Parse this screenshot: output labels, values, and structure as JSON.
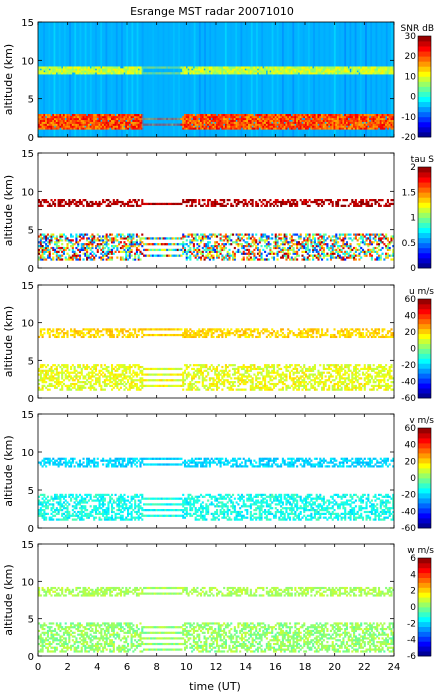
{
  "figure_title": "Esrange MST radar 20071010",
  "xlabel": "time (UT)",
  "x_ticks": [
    "0",
    "2",
    "4",
    "6",
    "8",
    "10",
    "12",
    "14",
    "16",
    "18",
    "20",
    "22",
    "24"
  ],
  "chart_data": [
    {
      "type": "heatmap",
      "quantity": "SNR",
      "colorbar_label": "SNR dB",
      "title": "Esrange MST radar 20071010",
      "xlabel": "",
      "ylabel": "altitude (km)",
      "xlim": [
        0,
        24
      ],
      "ylim": [
        0,
        15
      ],
      "y_ticks": [
        "0",
        "5",
        "10",
        "15"
      ],
      "clim": [
        -20,
        30
      ],
      "cbar_ticks": [
        "30",
        "20",
        "10",
        "0",
        "-10",
        "-20"
      ],
      "data_gap_hours": [
        7.0,
        9.6
      ],
      "layers": [
        {
          "altitude_km": [
            8.2,
            9.0
          ],
          "value_range": [
            5,
            12
          ]
        },
        {
          "altitude_km": [
            1.0,
            3.0
          ],
          "value_range": [
            15,
            25
          ]
        }
      ],
      "background_value": -5,
      "grid": false
    },
    {
      "type": "heatmap",
      "quantity": "tau",
      "colorbar_label": "tau S",
      "xlabel": "",
      "ylabel": "altitude (km)",
      "xlim": [
        0,
        24
      ],
      "ylim": [
        0,
        15
      ],
      "y_ticks": [
        "0",
        "5",
        "10",
        "15"
      ],
      "clim": [
        0,
        2
      ],
      "cbar_ticks": [
        "2",
        "1.5",
        "1",
        "0.5",
        "0"
      ],
      "data_gap_hours": [
        7.0,
        9.6
      ],
      "layers": [
        {
          "altitude_km": [
            8.0,
            9.0
          ],
          "value_range": [
            1.8,
            2.0
          ]
        },
        {
          "altitude_km": [
            1.0,
            4.5
          ],
          "value_range": [
            0.3,
            2.0
          ]
        }
      ],
      "grid": false
    },
    {
      "type": "heatmap",
      "quantity": "u",
      "colorbar_label": "u m/s",
      "xlabel": "",
      "ylabel": "altitude (km)",
      "xlim": [
        0,
        24
      ],
      "ylim": [
        0,
        15
      ],
      "y_ticks": [
        "0",
        "5",
        "10",
        "15"
      ],
      "clim": [
        -60,
        60
      ],
      "cbar_ticks": [
        "60",
        "40",
        "20",
        "0",
        "-20",
        "-40",
        "-60"
      ],
      "data_gap_hours": [
        7.0,
        9.6
      ],
      "layers": [
        {
          "altitude_km": [
            8.0,
            9.2
          ],
          "value_range": [
            15,
            25
          ]
        },
        {
          "altitude_km": [
            1.0,
            4.5
          ],
          "value_range": [
            5,
            20
          ]
        }
      ],
      "grid": false
    },
    {
      "type": "heatmap",
      "quantity": "v",
      "colorbar_label": "v m/s",
      "xlabel": "",
      "ylabel": "altitude (km)",
      "xlim": [
        0,
        24
      ],
      "ylim": [
        0,
        15
      ],
      "y_ticks": [
        "0",
        "5",
        "10",
        "15"
      ],
      "clim": [
        -60,
        60
      ],
      "cbar_ticks": [
        "60",
        "40",
        "20",
        "0",
        "-20",
        "-40",
        "-60"
      ],
      "data_gap_hours": [
        7.0,
        9.6
      ],
      "layers": [
        {
          "altitude_km": [
            8.0,
            9.2
          ],
          "value_range": [
            -25,
            -15
          ]
        },
        {
          "altitude_km": [
            1.0,
            4.5
          ],
          "value_range": [
            -20,
            -5
          ]
        }
      ],
      "grid": false
    },
    {
      "type": "heatmap",
      "quantity": "w",
      "colorbar_label": "w m/s",
      "xlabel": "time (UT)",
      "ylabel": "altitude (km)",
      "xlim": [
        0,
        24
      ],
      "ylim": [
        0,
        15
      ],
      "y_ticks": [
        "0",
        "5",
        "10",
        "15"
      ],
      "clim": [
        -6,
        6
      ],
      "cbar_ticks": [
        "6",
        "4",
        "2",
        "0",
        "-2",
        "-4",
        "-6"
      ],
      "data_gap_hours": [
        7.0,
        9.6
      ],
      "layers": [
        {
          "altitude_km": [
            8.0,
            9.2
          ],
          "value_range": [
            0,
            1
          ]
        },
        {
          "altitude_km": [
            0.5,
            4.5
          ],
          "value_range": [
            -0.5,
            1.0
          ]
        }
      ],
      "grid": false
    }
  ]
}
